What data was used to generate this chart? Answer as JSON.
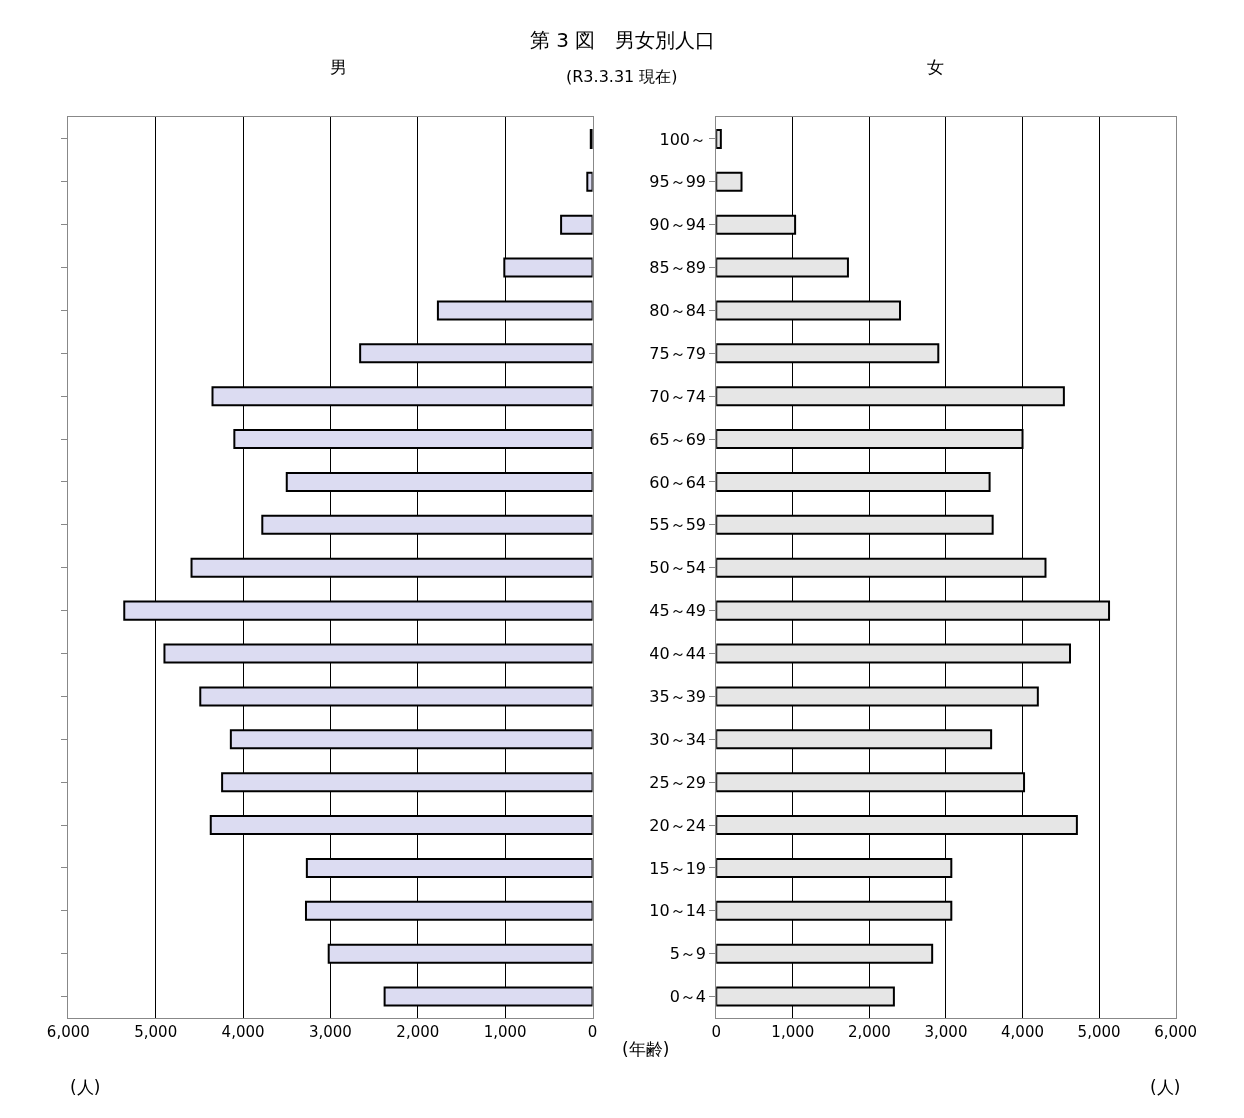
{
  "chart_data": [
    {
      "type": "bar",
      "orientation": "horizontal",
      "title": "第 3 図　男女別人口",
      "subtitle": "(R3.3.31 現在)",
      "annotations": [
        "男",
        "(人)"
      ],
      "categories": [
        null,
        null,
        null,
        null,
        null,
        null,
        null,
        null,
        null,
        null,
        null,
        null,
        null,
        null,
        null,
        null,
        null,
        null,
        null,
        null,
        null
      ],
      "series": [
        {
          "color": "#dcdcf2",
          "values": [
            20,
            60,
            360,
            1010,
            1770,
            2660,
            4350,
            4100,
            3500,
            3780,
            4590,
            5360,
            4900,
            4490,
            4140,
            4240,
            4370,
            3270,
            3280,
            3020,
            2380
          ]
        }
      ],
      "xlim": [
        6000,
        0
      ],
      "xticks": [
        {
          "value": 6000,
          "label": "6,000"
        },
        {
          "value": 5000,
          "label": "5,000"
        },
        {
          "value": 4000,
          "label": "4,000"
        },
        {
          "value": 3000,
          "label": "3,000"
        },
        {
          "value": 2000,
          "label": "2,000"
        },
        {
          "value": 1000,
          "label": "1,000"
        },
        0
      ],
      "grid": "x",
      "tick_labels": "x"
    },
    {
      "type": "bar",
      "orientation": "horizontal",
      "annotations": [
        "女",
        "(年齢)",
        "(人)"
      ],
      "categories": [
        "100～",
        "95～99",
        "90～94",
        "85～89",
        "80～84",
        "75～79",
        "70～74",
        "65～69",
        "60～64",
        "55～59",
        "50～54",
        "45～49",
        "40～44",
        "35～39",
        "30～34",
        "25～29",
        "20～24",
        "15～19",
        "10～14",
        "5～9",
        "0～4"
      ],
      "series": [
        {
          "color": "#e6e6e6",
          "values": [
            60,
            330,
            1030,
            1720,
            2400,
            2900,
            4540,
            4000,
            3570,
            3610,
            4300,
            5130,
            4620,
            4200,
            3590,
            4020,
            4710,
            3070,
            3070,
            2820,
            2320
          ]
        }
      ],
      "xlim": [
        0,
        6000
      ],
      "xticks": [
        0,
        {
          "value": 1000,
          "label": "1,000"
        },
        {
          "value": 2000,
          "label": "2,000"
        },
        {
          "value": 3000,
          "label": "3,000"
        },
        {
          "value": 4000,
          "label": "4,000"
        },
        {
          "value": 5000,
          "label": "5,000"
        },
        {
          "value": 6000,
          "label": "6,000"
        }
      ],
      "grid": "x"
    }
  ]
}
